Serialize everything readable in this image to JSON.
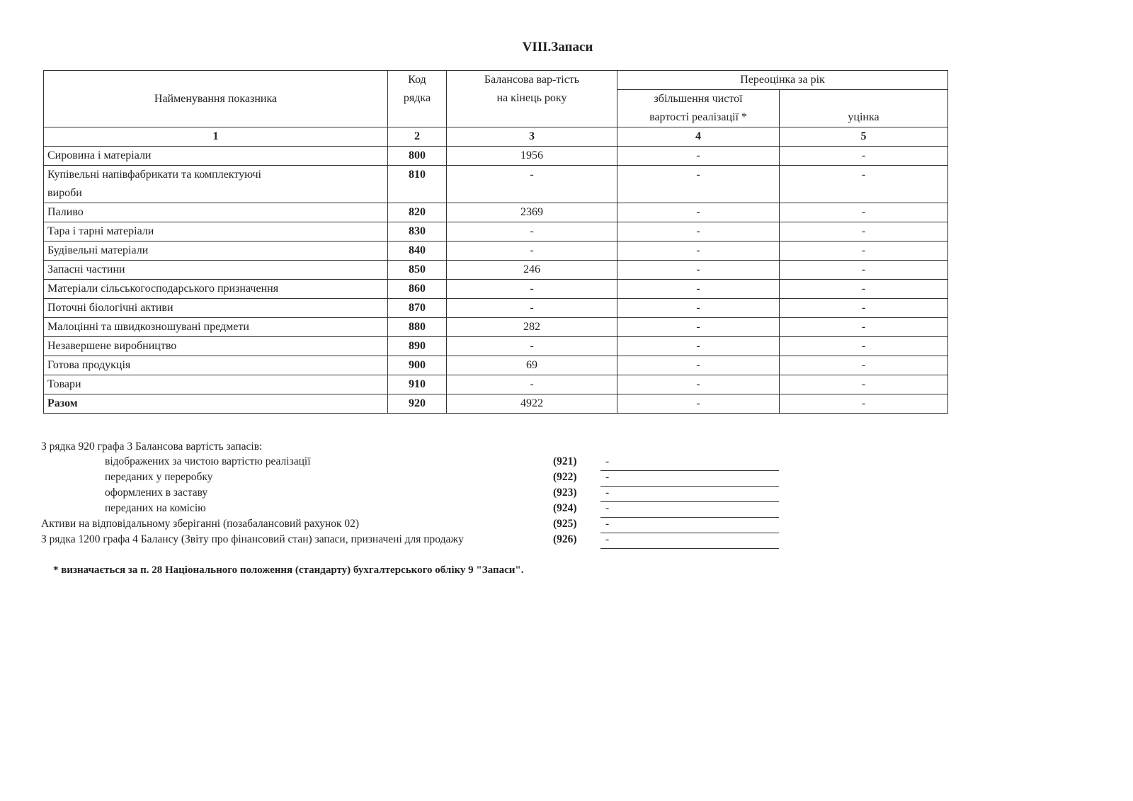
{
  "title": "VIII.Запаси",
  "table": {
    "headers": {
      "name": "Найменування показника",
      "code": "Код рядка",
      "balance": "Балансова вар-тість на кінець року",
      "revaluation": "Переоцінка за рік",
      "increase": "збільшення чистої вартості реалізації *",
      "markdown": "уцінка"
    },
    "column_numbers": [
      "1",
      "2",
      "3",
      "4",
      "5"
    ],
    "rows": [
      {
        "name": "Сировина і матеріали",
        "code": "800",
        "balance": "1956",
        "increase": "-",
        "markdown": "-"
      },
      {
        "name": "Купівельні напівфабрикати та комплектуючі вироби",
        "code": "810",
        "balance": "-",
        "increase": "-",
        "markdown": "-"
      },
      {
        "name": "Паливо",
        "code": "820",
        "balance": "2369",
        "increase": "-",
        "markdown": "-"
      },
      {
        "name": "Тара і тарні матеріали",
        "code": "830",
        "balance": "-",
        "increase": "-",
        "markdown": "-"
      },
      {
        "name": "Будівельні матеріали",
        "code": "840",
        "balance": "-",
        "increase": "-",
        "markdown": "-"
      },
      {
        "name": "Запасні частини",
        "code": "850",
        "balance": "246",
        "increase": "-",
        "markdown": "-"
      },
      {
        "name": "Матеріали сільськогосподарського призначення",
        "code": "860",
        "balance": "-",
        "increase": "-",
        "markdown": "-"
      },
      {
        "name": "Поточні біологічні активи",
        "code": "870",
        "balance": "-",
        "increase": "-",
        "markdown": "-"
      },
      {
        "name": "Малоцінні та швидкозношувані предмети",
        "code": "880",
        "balance": "282",
        "increase": "-",
        "markdown": "-"
      },
      {
        "name": "Незавершене виробництво",
        "code": "890",
        "balance": "-",
        "increase": "-",
        "markdown": "-"
      },
      {
        "name": "Готова продукція",
        "code": "900",
        "balance": "69",
        "increase": "-",
        "markdown": "-"
      },
      {
        "name": "Товари",
        "code": "910",
        "balance": "-",
        "increase": "-",
        "markdown": "-"
      },
      {
        "name": "Разом",
        "code": "920",
        "balance": "4922",
        "increase": "-",
        "markdown": "-"
      }
    ]
  },
  "notes": {
    "intro": "З рядка 920 графа 3  Балансова вартість запасів:",
    "items": [
      {
        "label": "відображених за чистою вартістю реалізації",
        "code": "(921)",
        "value": "-"
      },
      {
        "label": "переданих у переробку",
        "code": "(922)",
        "value": "-"
      },
      {
        "label": "оформлених в заставу",
        "code": "(923)",
        "value": "-"
      },
      {
        "label": "переданих на комісію",
        "code": "(924)",
        "value": "-"
      },
      {
        "label": "Активи на відповідальному зберіганні  (позабалансовий рахунок 02)",
        "code": "(925)",
        "value": "-"
      },
      {
        "label": "З рядка 1200 графа 4 Балансу (Звіту про фінансовий стан)     запаси, призначені для продажу",
        "code": "(926)",
        "value": "-"
      }
    ],
    "footnote": "* визначається за п. 28 Національного положення (стандарту) бухгалтерського обліку 9 \"Запаси\"."
  }
}
